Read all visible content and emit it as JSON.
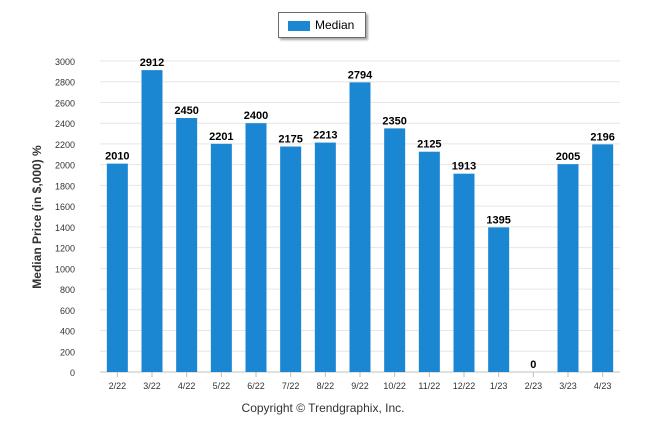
{
  "chart_data": {
    "type": "bar",
    "categories": [
      "2/22",
      "3/22",
      "4/22",
      "5/22",
      "6/22",
      "7/22",
      "8/22",
      "9/22",
      "10/22",
      "11/22",
      "12/22",
      "1/23",
      "2/23",
      "3/23",
      "4/23"
    ],
    "series": [
      {
        "name": "Median",
        "values": [
          2010,
          2912,
          2450,
          2201,
          2400,
          2175,
          2213,
          2794,
          2350,
          2125,
          1913,
          1395,
          0,
          2005,
          2196
        ]
      }
    ],
    "title": "",
    "xlabel": "",
    "ylabel": "Median Price (in $,000) %",
    "ylim": [
      0,
      3000
    ],
    "yticks": [
      0,
      200,
      400,
      600,
      800,
      1000,
      1200,
      1400,
      1600,
      1800,
      2000,
      2200,
      2400,
      2600,
      2800,
      3000
    ],
    "grid": true,
    "legend_position": "top-center",
    "bar_color": "#1b87d2",
    "data_labels": true
  },
  "footer": {
    "copyright": "Copyright © Trendgraphix, Inc."
  }
}
